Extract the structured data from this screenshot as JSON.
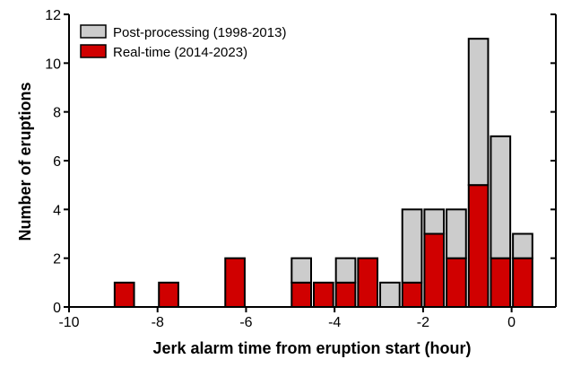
{
  "chart_data": {
    "type": "bar",
    "stacked": true,
    "xlabel": "Jerk alarm time from eruption start (hour)",
    "ylabel": "Number of eruptions",
    "xlim": [
      -10,
      1
    ],
    "ylim": [
      0,
      12
    ],
    "bin_width": 0.5,
    "x_ticks": [
      -10,
      -8,
      -6,
      -4,
      -2,
      0
    ],
    "y_ticks": [
      0,
      2,
      4,
      6,
      8,
      10,
      12
    ],
    "grid": false,
    "legend_position": "top-left",
    "bin_centers": [
      -8.75,
      -7.75,
      -6.25,
      -4.75,
      -4.25,
      -3.75,
      -3.25,
      -2.75,
      -2.25,
      -1.75,
      -1.25,
      -0.75,
      -0.25,
      0.25
    ],
    "series": [
      {
        "name": "Real-time (2014-2023)",
        "color": "#d00000",
        "values": [
          1,
          1,
          2,
          1,
          1,
          1,
          2,
          0,
          1,
          3,
          2,
          5,
          2,
          2
        ]
      },
      {
        "name": "Post-processing (1998-2013)",
        "color": "#cccccc",
        "values": [
          0,
          0,
          0,
          1,
          0,
          1,
          0,
          1,
          3,
          1,
          2,
          6,
          5,
          1
        ]
      }
    ]
  }
}
